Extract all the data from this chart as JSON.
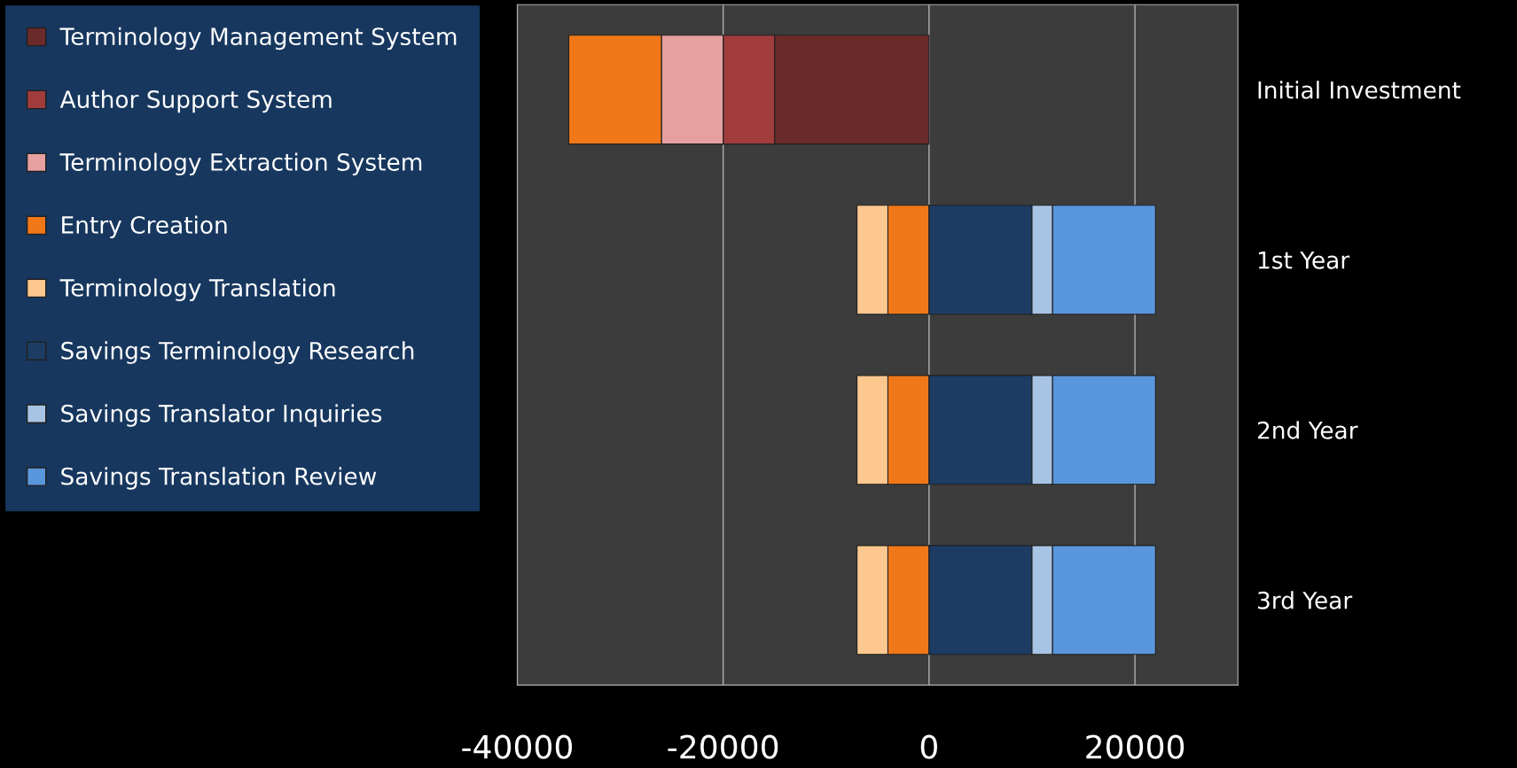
{
  "chart_data": {
    "type": "bar",
    "orientation": "horizontal",
    "stacked": true,
    "categories": [
      "Initial Investment",
      "1st Year",
      "2nd Year",
      "3rd Year"
    ],
    "series": [
      {
        "name": "Terminology Management System",
        "color": "#6b2a2a",
        "values": [
          -15000,
          null,
          null,
          null
        ]
      },
      {
        "name": "Author Support System",
        "color": "#a03c3c",
        "values": [
          -5000,
          null,
          null,
          null
        ]
      },
      {
        "name": "Terminology Extraction System",
        "color": "#e6a0a0",
        "values": [
          -6000,
          null,
          null,
          null
        ]
      },
      {
        "name": "Entry Creation",
        "color": "#f07818",
        "values": [
          -9000,
          -4000,
          -4000,
          -4000
        ]
      },
      {
        "name": "Terminology Translation",
        "color": "#fcc890",
        "values": [
          null,
          -3000,
          -3000,
          -3000
        ]
      },
      {
        "name": "Savings Terminology Research",
        "color": "#1c3c64",
        "values": [
          null,
          10000,
          10000,
          10000
        ]
      },
      {
        "name": "Savings Translator Inquiries",
        "color": "#a8c4e4",
        "values": [
          null,
          2000,
          2000,
          2000
        ]
      },
      {
        "name": "Savings Translation Review",
        "color": "#5a96dc",
        "values": [
          null,
          10000,
          10000,
          10000
        ]
      }
    ],
    "xlim": [
      -40000,
      30000
    ],
    "xticks": [
      -40000,
      -20000,
      0,
      20000
    ],
    "grid": "x",
    "legend": "left"
  }
}
